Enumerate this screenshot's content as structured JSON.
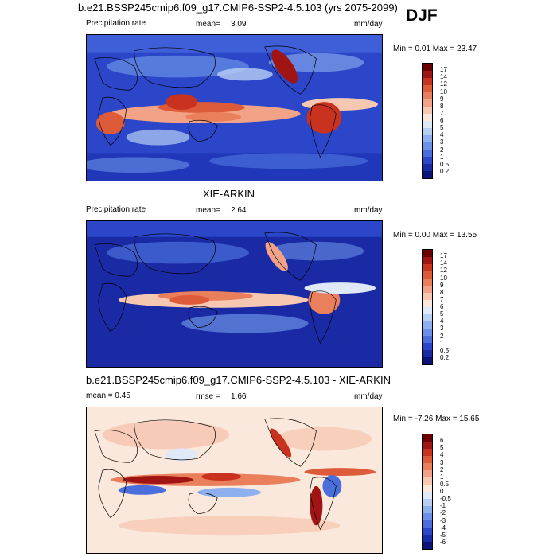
{
  "season_label": "DJF",
  "panels": [
    {
      "id": "model",
      "title": "b.e21.BSSP245cmip6.f09_g17.CMIP6-SSP2-4.5.103 (yrs 2075-2099)",
      "left_label": "Precipitation rate",
      "stat_label": "mean=",
      "stat_value": "3.09",
      "units": "mm/day",
      "minmax": "Min =   0.01 Max =  23.47",
      "cbar_levels": [
        "17",
        "14",
        "12",
        "10",
        "9",
        "8",
        "7",
        "6",
        "5",
        "4",
        "3",
        "2",
        "1",
        "0.5",
        "0.2"
      ],
      "cbar_colors": [
        "#6b0000",
        "#a11414",
        "#c8321f",
        "#de5b3a",
        "#ea7f5c",
        "#f2a387",
        "#f6c8b2",
        "#fbe8dd",
        "#dfe9f8",
        "#b8cff4",
        "#8eb0ee",
        "#6b91e6",
        "#4a6fdc",
        "#2b46c8",
        "#1a2aa5",
        "#0a1478"
      ]
    },
    {
      "id": "obs",
      "title": "XIE-ARKIN",
      "left_label": "Precipitation rate",
      "stat_label": "mean=",
      "stat_value": "2.64",
      "units": "mm/day",
      "minmax": "Min =   0.00 Max =  13.55",
      "cbar_levels": [
        "17",
        "14",
        "12",
        "10",
        "9",
        "8",
        "7",
        "6",
        "5",
        "4",
        "3",
        "2",
        "1",
        "0.5",
        "0.2"
      ],
      "cbar_colors": [
        "#6b0000",
        "#a11414",
        "#c8321f",
        "#de5b3a",
        "#ea7f5c",
        "#f2a387",
        "#f6c8b2",
        "#fbe8dd",
        "#dfe9f8",
        "#b8cff4",
        "#8eb0ee",
        "#6b91e6",
        "#4a6fdc",
        "#2b46c8",
        "#1a2aa5",
        "#0a1478"
      ]
    },
    {
      "id": "diff",
      "title": "b.e21.BSSP245cmip6.f09_g17.CMIP6-SSP2-4.5.103 - XIE-ARKIN",
      "left_label": "mean =   0.45",
      "stat_label": "rmse =",
      "stat_value": "1.66",
      "units": "mm/day",
      "minmax": "Min =  -7.26 Max =  15.65",
      "cbar_levels": [
        "6",
        "5",
        "4",
        "3",
        "2",
        "1",
        "0.5",
        "0",
        "-0.5",
        "-1",
        "-2",
        "-3",
        "-4",
        "-5",
        "-6"
      ],
      "cbar_colors": [
        "#6b0000",
        "#a11414",
        "#c8321f",
        "#de5b3a",
        "#ea7f5c",
        "#f2a387",
        "#f6c8b2",
        "#fbe8dd",
        "#dfe9f8",
        "#b8cff4",
        "#8eb0ee",
        "#6b91e6",
        "#4a6fdc",
        "#2b46c8",
        "#1a2aa5",
        "#0a1478"
      ]
    }
  ],
  "chart_data": [
    {
      "type": "heatmap",
      "title": "b.e21.BSSP245cmip6.f09_g17.CMIP6-SSP2-4.5.103 (yrs 2075-2099)",
      "variable": "Precipitation rate",
      "units": "mm/day",
      "mean": 3.09,
      "min": 0.01,
      "max": 23.47,
      "contour_levels": [
        0.2,
        0.5,
        1,
        2,
        3,
        4,
        5,
        6,
        7,
        8,
        9,
        10,
        12,
        14,
        17
      ],
      "colormap": "blue-white-red"
    },
    {
      "type": "heatmap",
      "title": "XIE-ARKIN",
      "variable": "Precipitation rate",
      "units": "mm/day",
      "mean": 2.64,
      "min": 0.0,
      "max": 13.55,
      "contour_levels": [
        0.2,
        0.5,
        1,
        2,
        3,
        4,
        5,
        6,
        7,
        8,
        9,
        10,
        12,
        14,
        17
      ],
      "colormap": "blue-white-red"
    },
    {
      "type": "heatmap",
      "title": "b.e21.BSSP245cmip6.f09_g17.CMIP6-SSP2-4.5.103 - XIE-ARKIN",
      "units": "mm/day",
      "mean": 0.45,
      "rmse": 1.66,
      "min": -7.26,
      "max": 15.65,
      "contour_levels": [
        -6,
        -5,
        -4,
        -3,
        -2,
        -1,
        -0.5,
        0,
        0.5,
        1,
        2,
        3,
        4,
        5,
        6
      ],
      "colormap": "blue-white-red"
    }
  ]
}
